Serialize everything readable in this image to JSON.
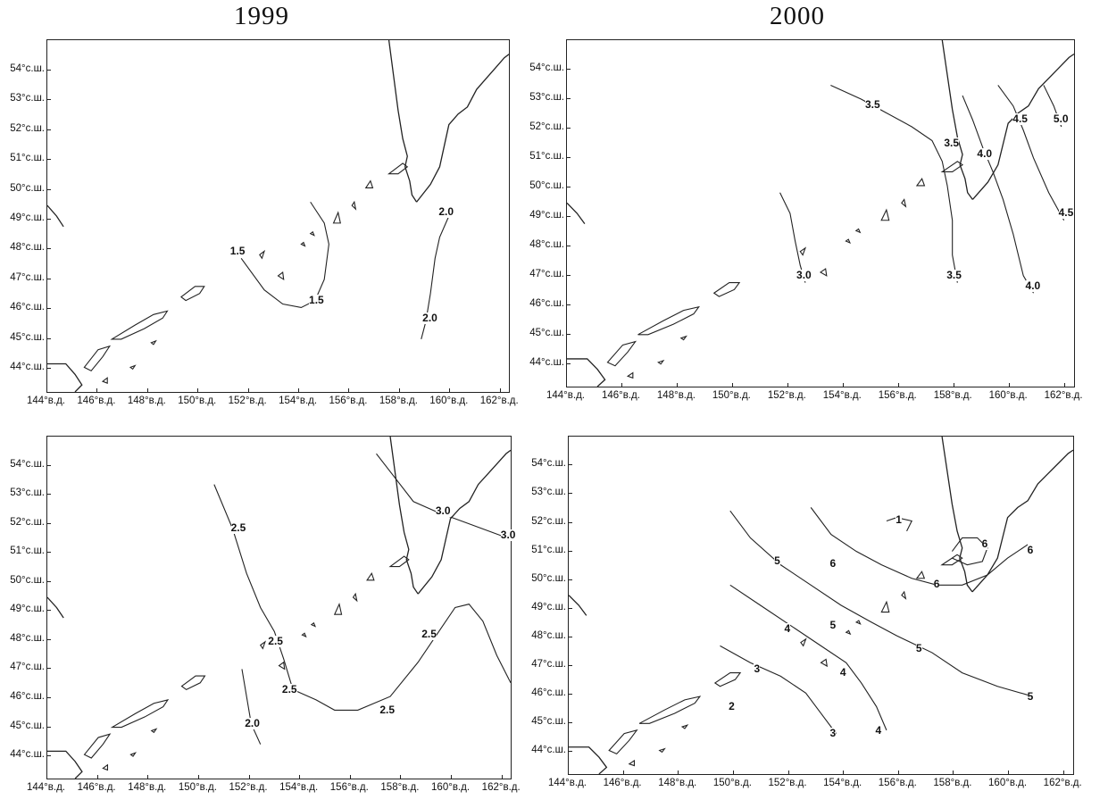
{
  "years": [
    "1999",
    "2000"
  ],
  "lat_labels": [
    "54°с.ш.",
    "53°с.ш.",
    "52°с.ш.",
    "51°с.ш.",
    "50°с.ш.",
    "49°с.ш.",
    "48°с.ш.",
    "47°с.ш.",
    "46°с.ш.",
    "45°с.ш.",
    "44°с.ш."
  ],
  "lon_labels": [
    "144°в.д.",
    "146°в.д.",
    "148°в.д.",
    "150°в.д.",
    "152°в.д.",
    "154°в.д.",
    "156°в.д.",
    "158°в.д.",
    "160°в.д.",
    "162°в.д."
  ],
  "lon_labels_alt": {
    "top_left_last": "162°в.д",
    "top_left_first": "144°в.д."
  },
  "panels": [
    {
      "id": "top-left",
      "year": "1999",
      "contour_labels": [
        "1.5",
        "1.5",
        "2.0",
        "2.0"
      ]
    },
    {
      "id": "top-right",
      "year": "2000",
      "contour_labels": [
        "3.5",
        "3.5",
        "3.5",
        "4.0",
        "4.0",
        "4.5",
        "4.5",
        "5.0",
        "3.0"
      ]
    },
    {
      "id": "bottom-left",
      "year": "1999",
      "contour_labels": [
        "2.5",
        "2.5",
        "2.5",
        "2.5",
        "2.5",
        "2.0",
        "3.0",
        "3.0"
      ]
    },
    {
      "id": "bottom-right",
      "year": "2000",
      "contour_labels": [
        "1",
        "6",
        "6",
        "6",
        "6",
        "5",
        "5",
        "5",
        "5",
        "4",
        "4",
        "4",
        "3",
        "3",
        "2"
      ]
    }
  ],
  "colors": {
    "ink": "#222222",
    "paper": "#ffffff"
  }
}
